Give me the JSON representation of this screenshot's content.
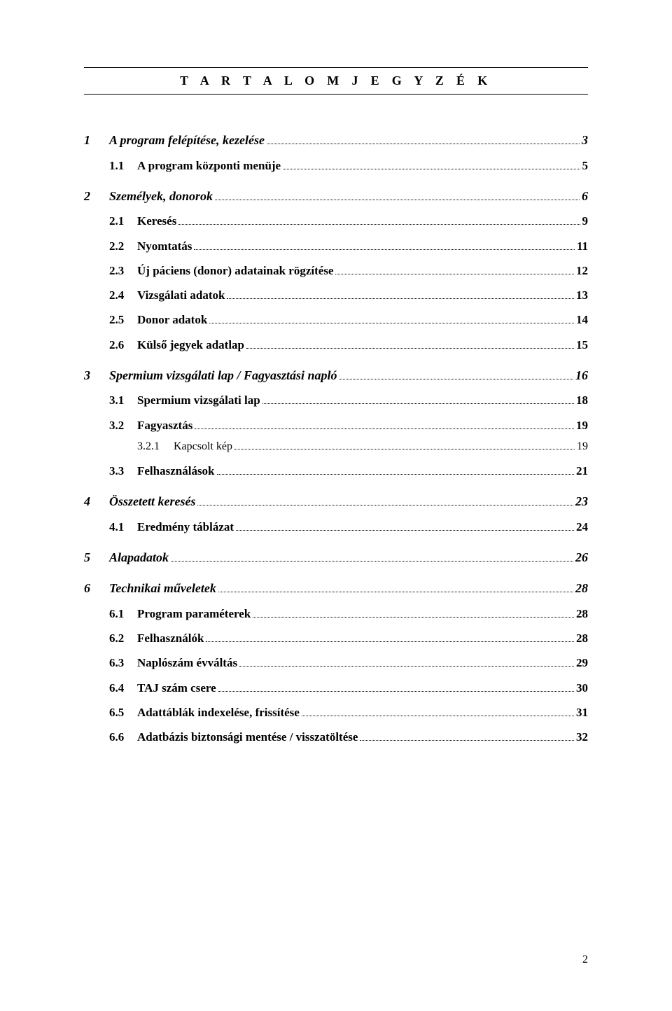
{
  "header": {
    "title": "T A R T A L O M J E G Y Z É K"
  },
  "footer": {
    "page_number": "2"
  },
  "toc": [
    {
      "level": 1,
      "num": "1",
      "label": "A program felépítése, kezelése",
      "page": "3"
    },
    {
      "level": 2,
      "num": "1.1",
      "label": "A program központi menüje",
      "page": "5"
    },
    {
      "level": 1,
      "num": "2",
      "label": "Személyek, donorok",
      "page": "6"
    },
    {
      "level": 2,
      "num": "2.1",
      "label": "Keresés",
      "page": "9"
    },
    {
      "level": 2,
      "num": "2.2",
      "label": "Nyomtatás",
      "page": "11"
    },
    {
      "level": 2,
      "num": "2.3",
      "label": "Új páciens (donor) adatainak rögzítése",
      "page": "12"
    },
    {
      "level": 2,
      "num": "2.4",
      "label": "Vizsgálati adatok",
      "page": "13"
    },
    {
      "level": 2,
      "num": "2.5",
      "label": "Donor adatok",
      "page": "14"
    },
    {
      "level": 2,
      "num": "2.6",
      "label": "Külső jegyek adatlap",
      "page": "15"
    },
    {
      "level": 1,
      "num": "3",
      "label": "Spermium vizsgálati lap / Fagyasztási napló",
      "page": "16"
    },
    {
      "level": 2,
      "num": "3.1",
      "label": "Spermium vizsgálati lap",
      "page": "18"
    },
    {
      "level": 2,
      "num": "3.2",
      "label": "Fagyasztás",
      "page": "19"
    },
    {
      "level": 3,
      "num": "3.2.1",
      "label": "Kapcsolt kép",
      "page": "19"
    },
    {
      "level": 2,
      "num": "3.3",
      "label": "Felhasználások",
      "page": "21"
    },
    {
      "level": 1,
      "num": "4",
      "label": "Összetett keresés",
      "page": "23"
    },
    {
      "level": 2,
      "num": "4.1",
      "label": "Eredmény táblázat",
      "page": "24"
    },
    {
      "level": 1,
      "num": "5",
      "label": "Alapadatok",
      "page": "26"
    },
    {
      "level": 1,
      "num": "6",
      "label": "Technikai műveletek",
      "page": "28"
    },
    {
      "level": 2,
      "num": "6.1",
      "label": "Program paraméterek",
      "page": "28"
    },
    {
      "level": 2,
      "num": "6.2",
      "label": "Felhasználók",
      "page": "28"
    },
    {
      "level": 2,
      "num": "6.3",
      "label": "Naplószám évváltás",
      "page": "29"
    },
    {
      "level": 2,
      "num": "6.4",
      "label": "TAJ szám csere",
      "page": "30"
    },
    {
      "level": 2,
      "num": "6.5",
      "label": "Adattáblák indexelése, frissítése",
      "page": "31"
    },
    {
      "level": 2,
      "num": "6.6",
      "label": "Adatbázis biztonsági mentése / visszatöltése",
      "page": "32"
    }
  ]
}
